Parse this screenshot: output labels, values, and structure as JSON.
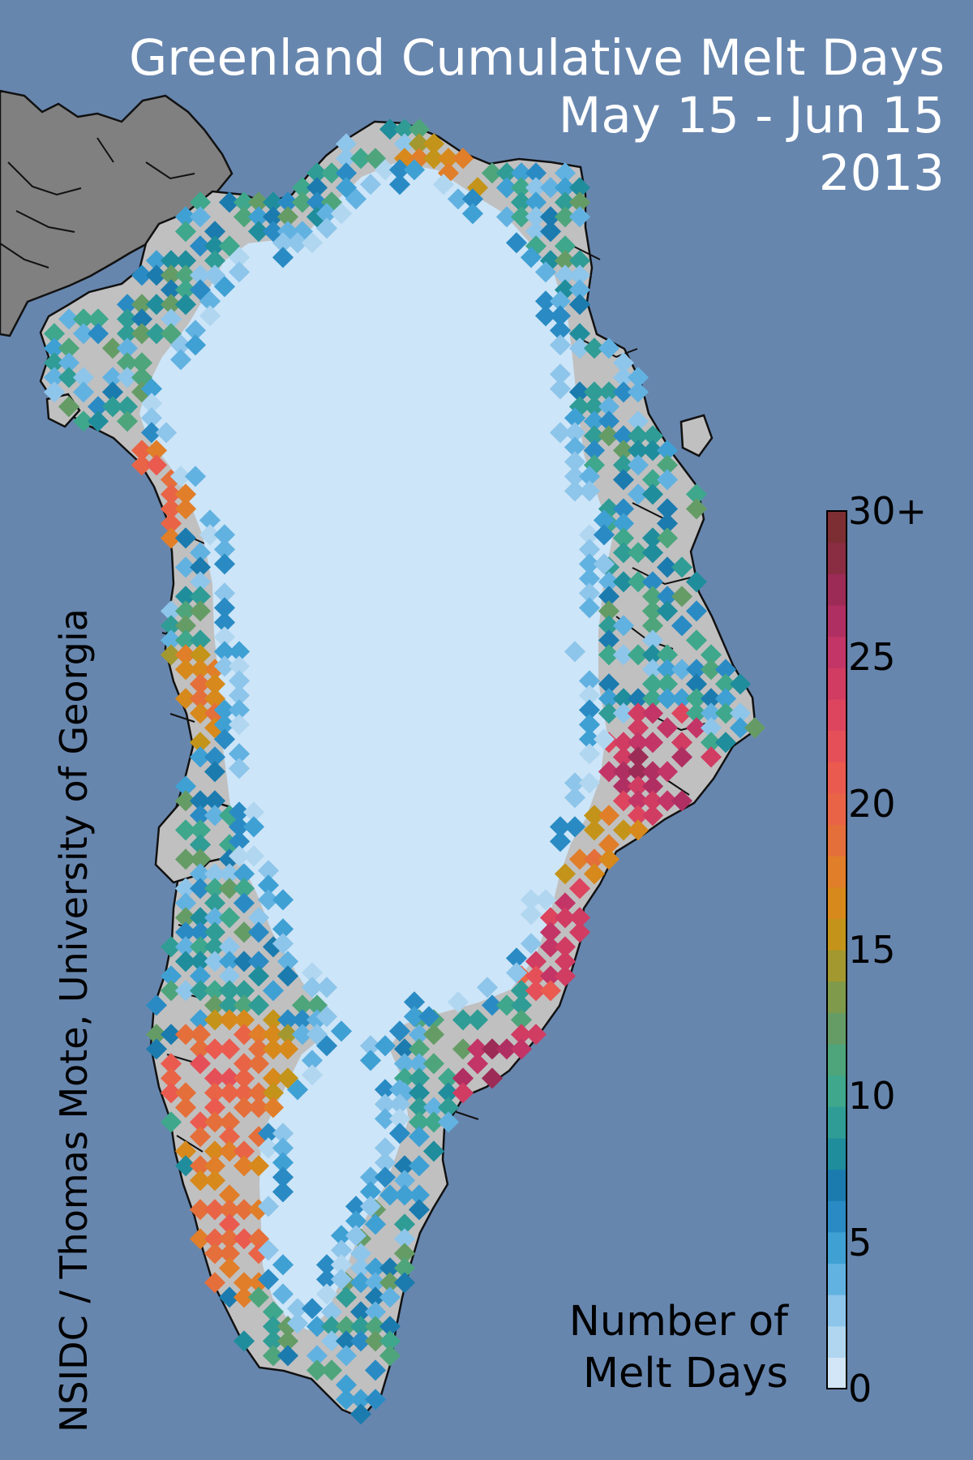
{
  "title": {
    "line1": "Greenland Cumulative Melt Days",
    "line2": "May 15 - Jun 15",
    "line3": "2013"
  },
  "credit": "NSIDC / Thomas Mote, University of Georgia",
  "legend": {
    "title_line1": "Number of",
    "title_line2": "Melt Days",
    "ticks": [
      {
        "label": "0",
        "value": 0
      },
      {
        "label": "5",
        "value": 5
      },
      {
        "label": "10",
        "value": 10
      },
      {
        "label": "15",
        "value": 15
      },
      {
        "label": "20",
        "value": 20
      },
      {
        "label": "25",
        "value": 25
      },
      {
        "label": "30+",
        "value": 30
      }
    ],
    "range": [
      0,
      30
    ],
    "colors": [
      "#d2e6f7",
      "#b0d6f0",
      "#8ec5ea",
      "#62b2e1",
      "#3fa0d4",
      "#2a8bc4",
      "#1b7bae",
      "#1f8d9c",
      "#2f9c95",
      "#3ea78c",
      "#4ea57c",
      "#659c66",
      "#7e9a4a",
      "#a3982f",
      "#c39419",
      "#d7891c",
      "#e07e29",
      "#e46f3a",
      "#e96446",
      "#ea5a4f",
      "#e55058",
      "#dd455f",
      "#d13c63",
      "#c23566",
      "#b02f62",
      "#9c2b56",
      "#8a2c42",
      "#7d2e33"
    ]
  },
  "colors": {
    "ocean": "#6786ae",
    "land": "#c0c0c0",
    "canada": "#808080",
    "no_melt_ice": "#cde5f8",
    "title_text": "#ffffff"
  }
}
